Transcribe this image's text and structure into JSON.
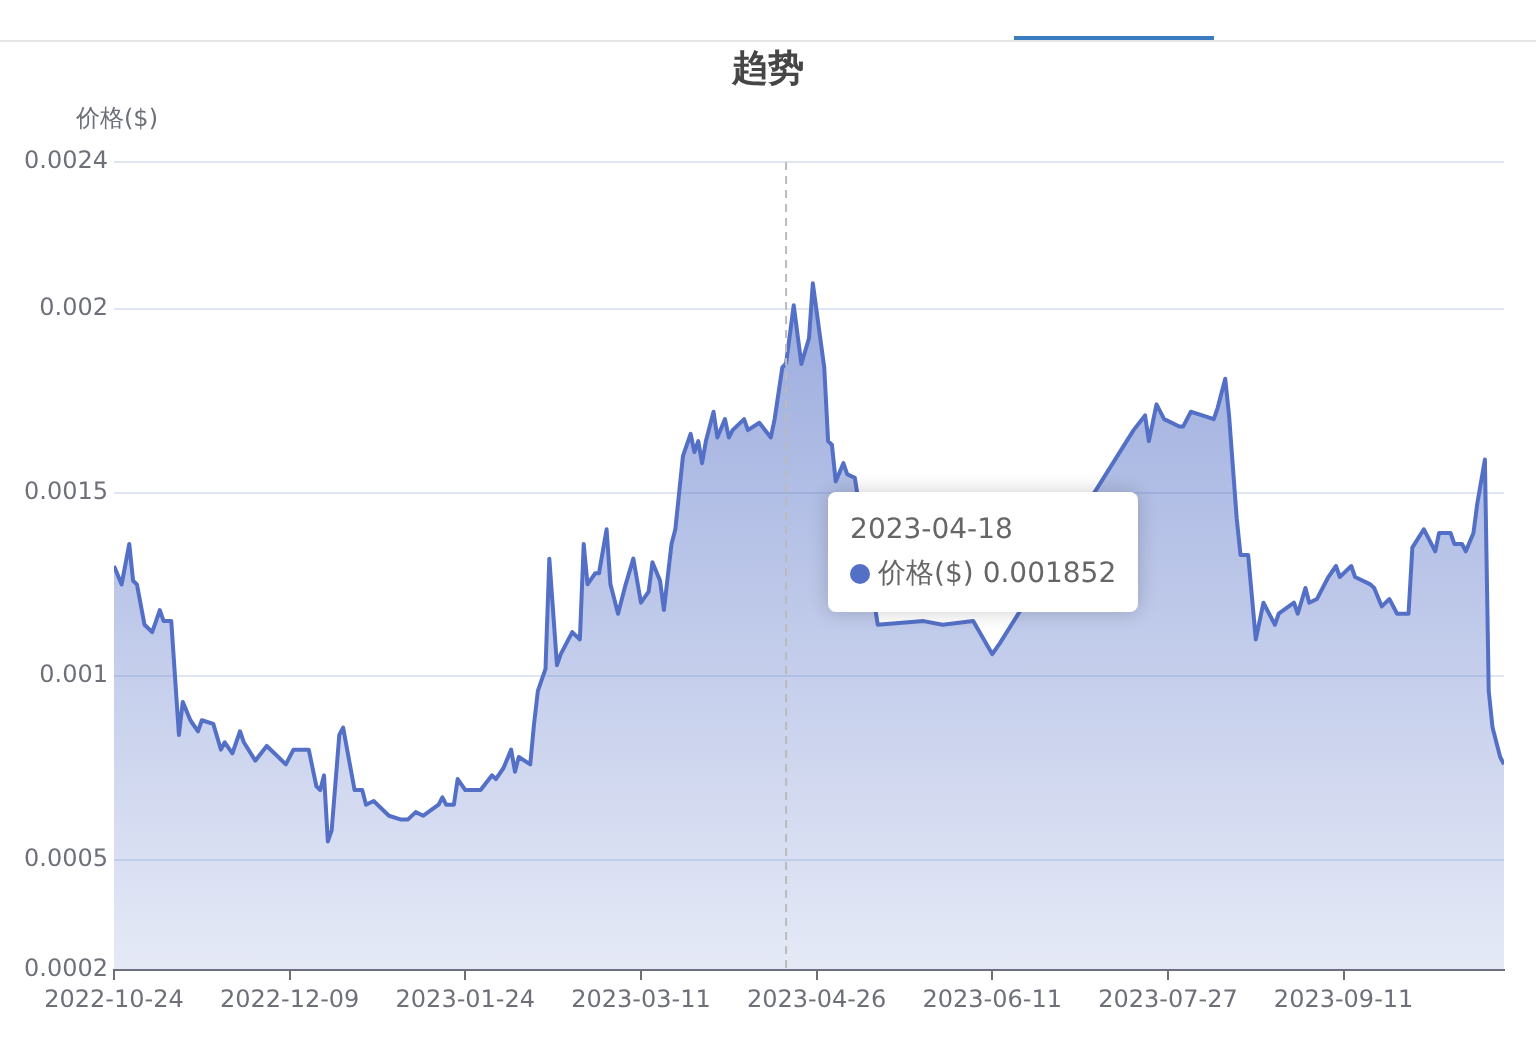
{
  "chart_data": {
    "type": "area",
    "title": "趋势",
    "ylabel": "价格($)",
    "x": [
      "2022-10-24",
      "2022-10-26",
      "2022-10-28",
      "2022-10-29",
      "2022-10-30",
      "2022-11-01",
      "2022-11-03",
      "2022-11-05",
      "2022-11-06",
      "2022-11-08",
      "2022-11-10",
      "2022-11-11",
      "2022-11-13",
      "2022-11-15",
      "2022-11-16",
      "2022-11-19",
      "2022-11-21",
      "2022-11-22",
      "2022-11-24",
      "2022-11-26",
      "2022-11-27",
      "2022-11-30",
      "2022-12-03",
      "2022-12-05",
      "2022-12-08",
      "2022-12-10",
      "2022-12-14",
      "2022-12-16",
      "2022-12-17",
      "2022-12-18",
      "2022-12-19",
      "2022-12-20",
      "2022-12-22",
      "2022-12-23",
      "2022-12-26",
      "2022-12-28",
      "2022-12-29",
      "2022-12-31",
      "2023-01-04",
      "2023-01-07",
      "2023-01-09",
      "2023-01-11",
      "2023-01-13",
      "2023-01-17",
      "2023-01-18",
      "2023-01-19",
      "2023-01-21",
      "2023-01-22",
      "2023-01-24",
      "2023-01-28",
      "2023-01-31",
      "2023-02-01",
      "2023-02-03",
      "2023-02-05",
      "2023-02-06",
      "2023-02-07",
      "2023-02-10",
      "2023-02-11",
      "2023-02-12",
      "2023-02-14",
      "2023-02-15",
      "2023-02-17",
      "2023-02-18",
      "2023-02-21",
      "2023-02-23",
      "2023-02-24",
      "2023-02-25",
      "2023-02-27",
      "2023-02-28",
      "2023-03-02",
      "2023-03-03",
      "2023-03-05",
      "2023-03-07",
      "2023-03-09",
      "2023-03-11",
      "2023-03-13",
      "2023-03-14",
      "2023-03-16",
      "2023-03-17",
      "2023-03-19",
      "2023-03-20",
      "2023-03-22",
      "2023-03-24",
      "2023-03-25",
      "2023-03-26",
      "2023-03-27",
      "2023-03-28",
      "2023-03-30",
      "2023-03-31",
      "2023-04-02",
      "2023-04-03",
      "2023-04-04",
      "2023-04-07",
      "2023-04-08",
      "2023-04-11",
      "2023-04-14",
      "2023-04-15",
      "2023-04-17",
      "2023-04-18",
      "2023-04-20",
      "2023-04-22",
      "2023-04-24",
      "2023-04-25",
      "2023-04-28",
      "2023-04-29",
      "2023-04-30",
      "2023-05-01",
      "2023-05-03",
      "2023-05-04",
      "2023-05-06",
      "2023-05-12",
      "2023-05-24",
      "2023-05-29",
      "2023-06-06",
      "2023-06-11",
      "2023-06-13",
      "2023-06-14",
      "2023-07-15",
      "2023-07-18",
      "2023-07-21",
      "2023-07-22",
      "2023-07-24",
      "2023-07-26",
      "2023-07-30",
      "2023-07-31",
      "2023-08-02",
      "2023-08-05",
      "2023-08-08",
      "2023-08-09",
      "2023-08-11",
      "2023-08-12",
      "2023-08-14",
      "2023-08-15",
      "2023-08-17",
      "2023-08-19",
      "2023-08-21",
      "2023-08-24",
      "2023-08-25",
      "2023-08-29",
      "2023-08-30",
      "2023-09-01",
      "2023-09-02",
      "2023-09-04",
      "2023-09-07",
      "2023-09-09",
      "2023-09-10",
      "2023-09-13",
      "2023-09-14",
      "2023-09-18",
      "2023-09-19",
      "2023-09-21",
      "2023-09-23",
      "2023-09-25",
      "2023-09-28",
      "2023-09-29",
      "2023-10-02",
      "2023-10-05",
      "2023-10-06",
      "2023-10-09",
      "2023-10-10",
      "2023-10-12",
      "2023-10-13",
      "2023-10-15",
      "2023-10-16",
      "2023-10-18",
      "2023-10-19",
      "2023-10-20",
      "2023-10-22",
      "2023-10-23"
    ],
    "series": [
      {
        "color": "#5470c6",
        "values": [
          0.0013,
          0.00125,
          0.00136,
          0.00126,
          0.00125,
          0.00114,
          0.00112,
          0.00118,
          0.00115,
          0.00115,
          0.00084,
          0.00093,
          0.00088,
          0.00085,
          0.00088,
          0.00087,
          0.0008,
          0.00082,
          0.00079,
          0.00085,
          0.00082,
          0.00077,
          0.00081,
          0.00079,
          0.00076,
          0.0008,
          0.0008,
          0.0007,
          0.00069,
          0.00073,
          0.00055,
          0.00058,
          0.00084,
          0.00086,
          0.00069,
          0.00069,
          0.00065,
          0.00066,
          0.00062,
          0.00061,
          0.00061,
          0.00063,
          0.00062,
          0.00065,
          0.00067,
          0.00065,
          0.00065,
          0.00072,
          0.00069,
          0.00069,
          0.00073,
          0.00072,
          0.00075,
          0.0008,
          0.00074,
          0.00078,
          0.00076,
          0.00087,
          0.00096,
          0.00102,
          0.00132,
          0.00103,
          0.00106,
          0.00112,
          0.0011,
          0.00136,
          0.00125,
          0.00128,
          0.00128,
          0.0014,
          0.00125,
          0.00117,
          0.00125,
          0.00132,
          0.0012,
          0.00123,
          0.00131,
          0.00126,
          0.00118,
          0.00136,
          0.0014,
          0.0016,
          0.00166,
          0.00161,
          0.00164,
          0.00158,
          0.00164,
          0.00172,
          0.00165,
          0.0017,
          0.00165,
          0.00167,
          0.0017,
          0.00167,
          0.00169,
          0.00165,
          0.0017,
          0.00184,
          0.001852,
          0.00201,
          0.00185,
          0.00192,
          0.00207,
          0.00184,
          0.00164,
          0.00163,
          0.00153,
          0.00158,
          0.00155,
          0.00154,
          0.00114,
          0.00115,
          0.00114,
          0.00115,
          0.00106,
          0.00109,
          null,
          null,
          0.00167,
          0.00171,
          0.00164,
          0.00174,
          0.0017,
          0.00168,
          0.00168,
          0.00172,
          0.00171,
          0.0017,
          0.00173,
          0.00181,
          0.00171,
          0.00143,
          0.00133,
          0.00133,
          0.0011,
          0.0012,
          0.00114,
          0.00117,
          0.0012,
          0.00117,
          0.00124,
          0.0012,
          0.00121,
          0.00127,
          0.0013,
          0.00127,
          0.0013,
          0.00127,
          0.00125,
          0.00124,
          0.00119,
          0.00121,
          0.00117,
          0.00117,
          0.00135,
          0.0014,
          0.00134,
          0.00139,
          0.00139,
          0.00136,
          0.00136,
          0.00134,
          0.00139,
          0.00147,
          0.00159,
          0.00096,
          0.00086,
          0.00078,
          0.00076
        ]
      }
    ],
    "xlim": [
      "2022-10-24",
      "2023-10-23"
    ],
    "xticks": [
      "2022-10-24",
      "2022-12-09",
      "2023-01-24",
      "2023-03-11",
      "2023-04-26",
      "2023-06-11",
      "2023-07-27",
      "2023-09-11"
    ],
    "ylim": [
      0.0002,
      0.0024
    ],
    "yticks": [
      0.0002,
      0.0005,
      0.001,
      0.0015,
      0.002,
      0.0024
    ],
    "grid": "y",
    "legend": false,
    "ref_lines": [
      {
        "axis": "x",
        "value": "2023-04-18",
        "color": "#bbbbbb",
        "line_style": "dashed"
      }
    ],
    "annotations": [
      "2023-04-18",
      "价格($) 0.001852"
    ]
  }
}
